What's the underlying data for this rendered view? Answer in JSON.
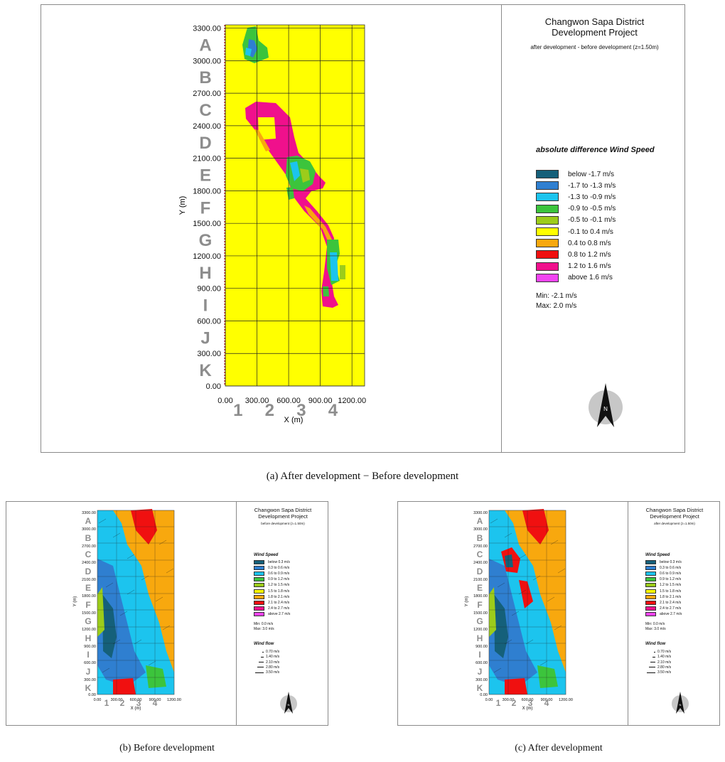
{
  "main_panel": {
    "title_line1": "Changwon Sapa District",
    "title_line2": "Development Project",
    "subtitle": "after development - before development (z=1.50m)",
    "legend_title": "absolute difference Wind Speed",
    "legend": [
      {
        "label": "below -1.7 m/s",
        "color": "#15607a"
      },
      {
        "label": "-1.7 to -1.3 m/s",
        "color": "#2f7fd0"
      },
      {
        "label": "-1.3 to -0.9 m/s",
        "color": "#1cc4ee"
      },
      {
        "label": "-0.9 to -0.5 m/s",
        "color": "#3cc43c"
      },
      {
        "label": "-0.5 to -0.1 m/s",
        "color": "#9ccc1a"
      },
      {
        "label": "-0.1 to 0.4 m/s",
        "color": "#ffff00"
      },
      {
        "label": "0.4 to 0.8 m/s",
        "color": "#f8a80e"
      },
      {
        "label": "0.8 to 1.2 m/s",
        "color": "#f01010"
      },
      {
        "label": "1.2 to 1.6 m/s",
        "color": "#f0108c"
      },
      {
        "label": "above 1.6 m/s",
        "color": "#f244f2"
      }
    ],
    "min_label": "Min: -2.1 m/s",
    "max_label": "Max: 2.0 m/s",
    "north": "N",
    "caption": "(a)  After development − Before development"
  },
  "panel_b": {
    "title_line1": "Changwon Sapa District",
    "title_line2": "Development Project",
    "subtitle": "before development (z=1.50m)",
    "legend_title": "Wind Speed",
    "min_label": "Min: 0.0 m/s",
    "max_label": "Max: 3.0 m/s",
    "flow_title": "Wind flow",
    "north": "N",
    "caption": "(b)  Before  development"
  },
  "panel_c": {
    "title_line1": "Changwon Sapa District",
    "title_line2": "Development Project",
    "subtitle": "after development (z=1.50m)",
    "legend_title": "Wind Speed",
    "min_label": "Min: 0.0 m/s",
    "max_label": "Max: 3.0 m/s",
    "flow_title": "Wind flow",
    "north": "N",
    "caption": "(c)  After  development"
  },
  "speed_legend": [
    {
      "label": "below 0.3 m/s",
      "color": "#15607a"
    },
    {
      "label": "0.3 to 0.6 m/s",
      "color": "#2f7fd0"
    },
    {
      "label": "0.6 to 0.9 m/s",
      "color": "#1cc4ee"
    },
    {
      "label": "0.9 to 1.2 m/s",
      "color": "#3cc43c"
    },
    {
      "label": "1.2 to 1.5 m/s",
      "color": "#9ccc1a"
    },
    {
      "label": "1.5 to 1.8 m/s",
      "color": "#ffff00"
    },
    {
      "label": "1.8 to 2.1 m/s",
      "color": "#f8a80e"
    },
    {
      "label": "2.1 to 2.4 m/s",
      "color": "#f01010"
    },
    {
      "label": "2.4 to 2.7 m/s",
      "color": "#f0108c"
    },
    {
      "label": "above 2.7 m/s",
      "color": "#f244f2"
    }
  ],
  "flow_legend": [
    "0.70 m/s",
    "1.40 m/s",
    "2.10 m/s",
    "2.80 m/s",
    "3.50 m/s"
  ],
  "chart_data": {
    "type": "heatmap",
    "xlabel": "X (m)",
    "ylabel": "Y (m)",
    "xlim": [
      0,
      1320
    ],
    "ylim": [
      0,
      3330
    ],
    "x_ticks": [
      "0.00",
      "300.00",
      "600.00",
      "900.00",
      "1200.00"
    ],
    "y_ticks": [
      "0.00",
      "300.00",
      "600.00",
      "900.00",
      "1200.00",
      "1500.00",
      "1800.00",
      "2100.00",
      "2400.00",
      "2700.00",
      "3000.00",
      "3300.00"
    ],
    "row_labels": [
      "A",
      "B",
      "C",
      "D",
      "E",
      "F",
      "G",
      "H",
      "I",
      "J",
      "K"
    ],
    "col_labels": [
      "1",
      "2",
      "3",
      "4"
    ]
  }
}
